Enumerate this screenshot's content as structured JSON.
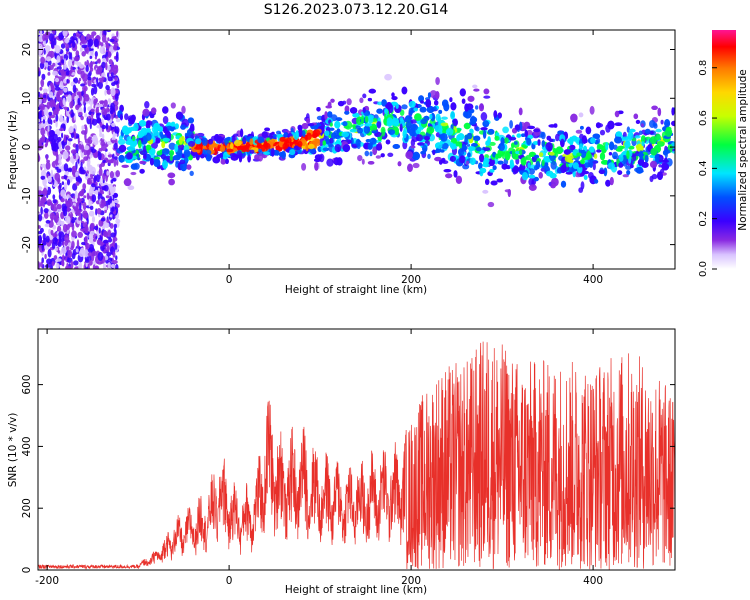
{
  "title": "S126.2023.073.12.20.G14",
  "chart_data": [
    {
      "type": "heatmap",
      "xlabel": "Height of straight line (km)",
      "ylabel": "Frequency (Hz)",
      "xlim": [
        -210,
        490
      ],
      "ylim": [
        -25,
        24
      ],
      "xticks": [
        -200,
        0,
        200,
        400
      ],
      "yticks": [
        -20,
        -10,
        0,
        10,
        20
      ],
      "colorbar": {
        "label": "Normalized spectral amplitude",
        "range": [
          0,
          0.95
        ],
        "ticks": [
          0.0,
          0.2,
          0.4,
          0.6,
          0.8
        ],
        "colormap": [
          "#ffffff",
          "#d9c3ff",
          "#8a2be2",
          "#3a00ff",
          "#0050ff",
          "#00e5ff",
          "#00ff40",
          "#c8ff00",
          "#ffd700",
          "#ff7a00",
          "#ff0000",
          "#ff1493"
        ]
      },
      "ridge": [
        {
          "x": -115,
          "f": 2
        },
        {
          "x": -100,
          "f": 0
        },
        {
          "x": -90,
          "f": 2
        },
        {
          "x": -75,
          "f": 0
        },
        {
          "x": -60,
          "f": 1
        },
        {
          "x": -40,
          "f": 0
        },
        {
          "x": 0,
          "f": 0
        },
        {
          "x": 50,
          "f": 0.5
        },
        {
          "x": 80,
          "f": 1
        },
        {
          "x": 100,
          "f": 2
        },
        {
          "x": 120,
          "f": 3
        },
        {
          "x": 150,
          "f": 4
        },
        {
          "x": 180,
          "f": 5
        },
        {
          "x": 200,
          "f": 5
        },
        {
          "x": 230,
          "f": 4
        },
        {
          "x": 260,
          "f": 2
        },
        {
          "x": 300,
          "f": 0
        },
        {
          "x": 340,
          "f": -2
        },
        {
          "x": 380,
          "f": -2
        },
        {
          "x": 420,
          "f": -1
        },
        {
          "x": 460,
          "f": 0
        },
        {
          "x": 490,
          "f": 2
        }
      ]
    },
    {
      "type": "line",
      "xlabel": "Height of straight line (km)",
      "ylabel": "SNR (10 * v/v)",
      "xlim": [
        -210,
        490
      ],
      "ylim": [
        0,
        780
      ],
      "xticks": [
        -200,
        0,
        200,
        400
      ],
      "yticks": [
        0,
        200,
        400,
        600
      ],
      "color": "#e8302a",
      "envelope": [
        {
          "x": -210,
          "max": 20
        },
        {
          "x": -120,
          "max": 15
        },
        {
          "x": -100,
          "max": 20
        },
        {
          "x": -80,
          "max": 70
        },
        {
          "x": -60,
          "max": 170
        },
        {
          "x": -40,
          "max": 220
        },
        {
          "x": -20,
          "max": 300
        },
        {
          "x": -10,
          "max": 410
        },
        {
          "x": 10,
          "max": 260
        },
        {
          "x": 30,
          "max": 320
        },
        {
          "x": 42,
          "max": 590
        },
        {
          "x": 60,
          "max": 450
        },
        {
          "x": 80,
          "max": 480
        },
        {
          "x": 100,
          "max": 400
        },
        {
          "x": 130,
          "max": 350
        },
        {
          "x": 160,
          "max": 400
        },
        {
          "x": 190,
          "max": 430
        },
        {
          "x": 210,
          "max": 560
        },
        {
          "x": 230,
          "max": 660
        },
        {
          "x": 260,
          "max": 680
        },
        {
          "x": 285,
          "max": 780
        },
        {
          "x": 320,
          "max": 680
        },
        {
          "x": 360,
          "max": 690
        },
        {
          "x": 400,
          "max": 670
        },
        {
          "x": 440,
          "max": 720
        },
        {
          "x": 470,
          "max": 650
        },
        {
          "x": 490,
          "max": 560
        }
      ]
    }
  ]
}
